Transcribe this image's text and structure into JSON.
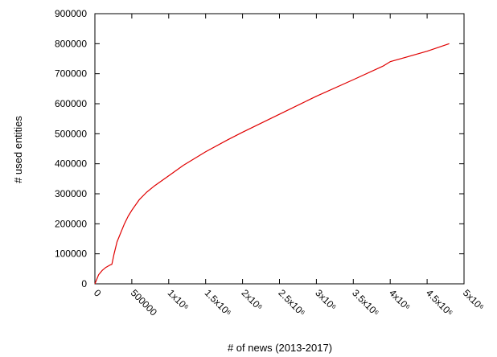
{
  "chart_data": {
    "type": "line",
    "title": "",
    "xlabel": "# of news (2013-2017)",
    "ylabel": "# used entities",
    "xlim": [
      0,
      5000000
    ],
    "ylim": [
      0,
      900000
    ],
    "grid": false,
    "legend": "none",
    "x_ticks": [
      0,
      500000,
      1000000,
      1500000,
      2000000,
      2500000,
      3000000,
      3500000,
      4000000,
      4500000,
      5000000
    ],
    "x_tick_labels": [
      "0",
      "500000",
      "1x10⁶",
      "1.5x10⁶",
      "2x10⁶",
      "2.5x10⁶",
      "3x10⁶",
      "3.5x10⁶",
      "4x10⁶",
      "4.5x10⁶",
      "5x10⁶"
    ],
    "y_ticks": [
      0,
      100000,
      200000,
      300000,
      400000,
      500000,
      600000,
      700000,
      800000,
      900000
    ],
    "y_tick_labels": [
      "0",
      "100000",
      "200000",
      "300000",
      "400000",
      "500000",
      "600000",
      "700000",
      "800000",
      "900000"
    ],
    "series": [
      {
        "color": "#e00000",
        "x": [
          0,
          50000,
          100000,
          150000,
          200000,
          230000,
          260000,
          300000,
          350000,
          400000,
          450000,
          500000,
          600000,
          700000,
          800000,
          1000000,
          1200000,
          1500000,
          1800000,
          2000000,
          2500000,
          3000000,
          3500000,
          3900000,
          4000000,
          4500000,
          4800000
        ],
        "y": [
          0,
          30000,
          45000,
          55000,
          62000,
          65000,
          100000,
          140000,
          170000,
          200000,
          225000,
          245000,
          280000,
          305000,
          325000,
          360000,
          395000,
          440000,
          480000,
          505000,
          565000,
          625000,
          680000,
          725000,
          740000,
          775000,
          800000
        ]
      }
    ]
  }
}
